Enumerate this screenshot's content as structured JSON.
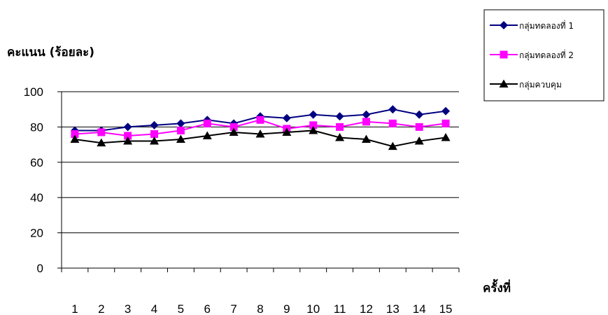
{
  "chart_data": {
    "type": "line",
    "ylabel": "คะแนน (ร้อยละ)",
    "xlabel": "ครั้งที่",
    "ylim": [
      0,
      100
    ],
    "yticks": [
      0,
      20,
      40,
      60,
      80,
      100
    ],
    "categories": [
      "1",
      "2",
      "3",
      "4",
      "5",
      "6",
      "7",
      "8",
      "9",
      "10",
      "11",
      "12",
      "13",
      "14",
      "15"
    ],
    "grid": "horizontal",
    "legend_position": "top-right",
    "series": [
      {
        "name": "กลุ่มทดลองที่ 1",
        "color": "#000080",
        "marker": "diamond",
        "values": [
          78,
          78,
          80,
          81,
          82,
          84,
          82,
          86,
          85,
          87,
          86,
          87,
          90,
          87,
          89
        ]
      },
      {
        "name": "กลุ่มทดลองที่ 2",
        "color": "#FF00FF",
        "marker": "square",
        "values": [
          76,
          77,
          75,
          76,
          78,
          82,
          80,
          84,
          79,
          81,
          80,
          83,
          82,
          80,
          82
        ]
      },
      {
        "name": "กลุ่มควบคุม",
        "color": "#000000",
        "marker": "triangle",
        "values": [
          73,
          71,
          72,
          72,
          73,
          75,
          77,
          76,
          77,
          78,
          74,
          73,
          69,
          72,
          74
        ]
      }
    ]
  }
}
